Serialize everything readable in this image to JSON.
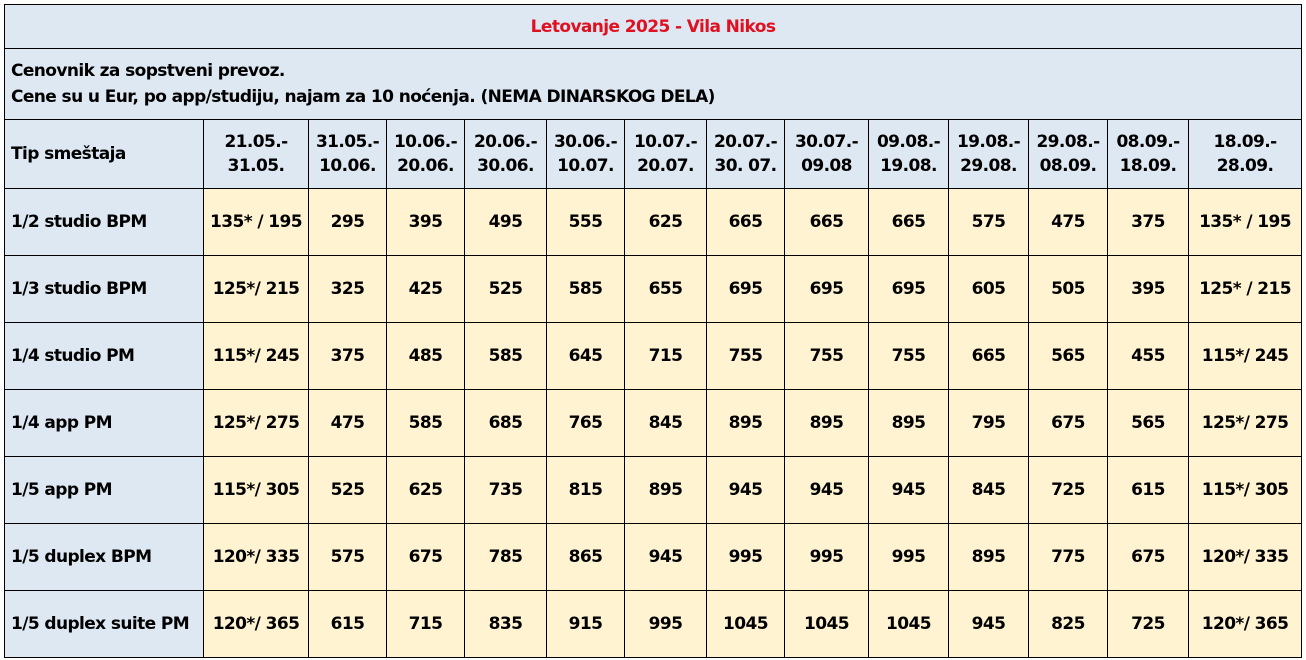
{
  "title": "Letovanje 2025 - Vila Nikos",
  "info": {
    "line1": "Cenovnik za sopstveni prevoz.",
    "line2": "Cene su u Eur, po app/studiju, najam za 10 noćenja. (NEMA DINARSKOG DELA)"
  },
  "header": {
    "first": "Tip smeštaja",
    "periods": [
      {
        "from": "21.05.-",
        "to": "31.05."
      },
      {
        "from": "31.05.-",
        "to": "10.06."
      },
      {
        "from": "10.06.-",
        "to": "20.06."
      },
      {
        "from": "20.06.-",
        "to": "30.06."
      },
      {
        "from": "30.06.-",
        "to": "10.07."
      },
      {
        "from": "10.07.-",
        "to": "20.07."
      },
      {
        "from": "20.07.-",
        "to": "30. 07."
      },
      {
        "from": "30.07.-",
        "to": "09.08"
      },
      {
        "from": "09.08.-",
        "to": "19.08."
      },
      {
        "from": "19.08.-",
        "to": "29.08."
      },
      {
        "from": "29.08.-",
        "to": "08.09."
      },
      {
        "from": "08.09.-",
        "to": "18.09."
      },
      {
        "from": "18.09.-",
        "to": "28.09."
      }
    ]
  },
  "rows": [
    {
      "label": "1/2 studio BPM",
      "values": [
        "135* / 195",
        "295",
        "395",
        "495",
        "555",
        "625",
        "665",
        "665",
        "665",
        "575",
        "475",
        "375",
        "135* / 195"
      ]
    },
    {
      "label": "1/3 studio BPM",
      "values": [
        "125*/ 215",
        "325",
        "425",
        "525",
        "585",
        "655",
        "695",
        "695",
        "695",
        "605",
        "505",
        "395",
        "125* / 215"
      ]
    },
    {
      "label": "1/4 studio PM",
      "values": [
        "115*/ 245",
        "375",
        "485",
        "585",
        "645",
        "715",
        "755",
        "755",
        "755",
        "665",
        "565",
        "455",
        "115*/ 245"
      ]
    },
    {
      "label": "1/4 app PM",
      "values": [
        "125*/ 275",
        "475",
        "585",
        "685",
        "765",
        "845",
        "895",
        "895",
        "895",
        "795",
        "675",
        "565",
        "125*/ 275"
      ]
    },
    {
      "label": "1/5 app PM",
      "values": [
        "115*/ 305",
        "525",
        "625",
        "735",
        "815",
        "895",
        "945",
        "945",
        "945",
        "845",
        "725",
        "615",
        "115*/ 305"
      ]
    },
    {
      "label": "1/5 duplex  BPM",
      "values": [
        "120*/ 335",
        "575",
        "675",
        "785",
        "865",
        "945",
        "995",
        "995",
        "995",
        "895",
        "775",
        "675",
        "120*/ 335"
      ]
    },
    {
      "label": "1/5 duplex suite PM",
      "values": [
        "120*/ 365",
        "615",
        "715",
        "835",
        "915",
        "995",
        "1045",
        "1045",
        "1045",
        "945",
        "825",
        "725",
        "120*/ 365"
      ]
    }
  ]
}
